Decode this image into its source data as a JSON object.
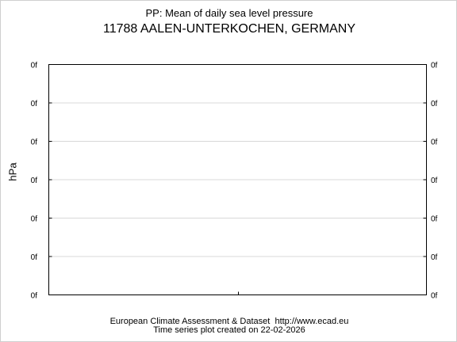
{
  "chart_data": {
    "type": "line",
    "subtitle": "PP: Mean of daily sea level pressure",
    "title": "11788 AALEN-UNTERKOCHEN, GERMANY",
    "ylabel": "hPa",
    "xlabel": "",
    "y_tick_labels": [
      "0f",
      "0f",
      "0f",
      "0f",
      "0f",
      "0f",
      "0f"
    ],
    "x_tick_count": 1,
    "grid": "horizontal",
    "series": []
  },
  "footer": {
    "line1": "European Climate Assessment & Dataset  http://www.ecad.eu",
    "line2": "Time series plot created on 22-02-2026"
  },
  "colors": {
    "frame": "#000000",
    "grid": "#d8d8d8",
    "background": "#ffffff"
  }
}
